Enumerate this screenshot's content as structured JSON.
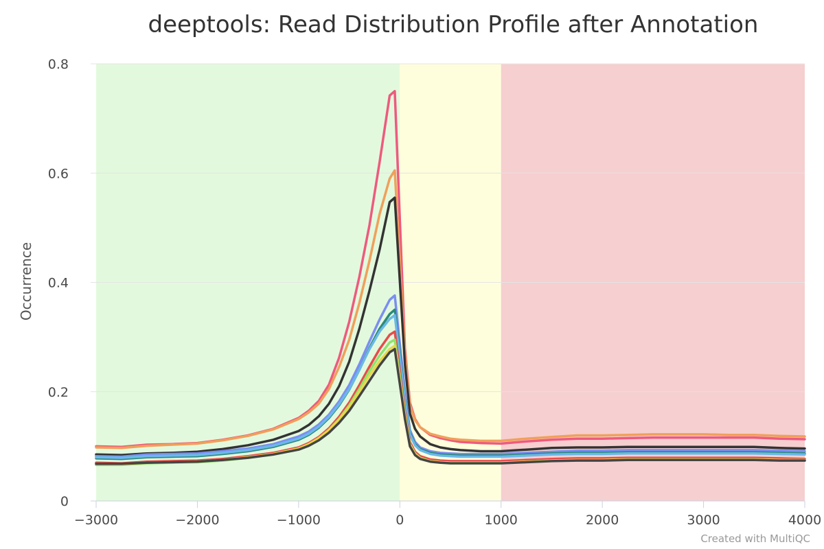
{
  "chart_data": {
    "type": "line",
    "title": "deeptools: Read Distribution Profile after Annotation",
    "ylabel": "Occurrence",
    "xlabel": "",
    "xlim": [
      -3000,
      4000
    ],
    "ylim": [
      0,
      0.8
    ],
    "xticks": [
      -3000,
      -2000,
      -1000,
      0,
      1000,
      2000,
      3000,
      4000
    ],
    "yticks": [
      0,
      0.2,
      0.4,
      0.6,
      0.8
    ],
    "grid": "horizontal",
    "legend": "none",
    "credit": "Created with MultiQC",
    "bands": [
      {
        "from": -3000,
        "to": 0,
        "color": "#e3f9dd"
      },
      {
        "from": 0,
        "to": 1000,
        "color": "#fefedc"
      },
      {
        "from": 1000,
        "to": 4000,
        "color": "#f6cfd0"
      }
    ],
    "x": [
      -3000,
      -2750,
      -2500,
      -2250,
      -2000,
      -1750,
      -1500,
      -1250,
      -1000,
      -900,
      -800,
      -700,
      -600,
      -500,
      -400,
      -300,
      -200,
      -100,
      -50,
      50,
      100,
      150,
      200,
      300,
      400,
      500,
      600,
      800,
      1000,
      1250,
      1500,
      1750,
      2000,
      2250,
      2500,
      2750,
      3000,
      3250,
      3500,
      3750,
      4000
    ],
    "series": [
      {
        "color": "#ee5a7e",
        "values": [
          0.1,
          0.099,
          0.103,
          0.104,
          0.106,
          0.112,
          0.12,
          0.132,
          0.152,
          0.165,
          0.183,
          0.213,
          0.262,
          0.328,
          0.41,
          0.505,
          0.62,
          0.742,
          0.75,
          0.28,
          0.18,
          0.15,
          0.135,
          0.121,
          0.115,
          0.111,
          0.108,
          0.106,
          0.105,
          0.109,
          0.112,
          0.114,
          0.114,
          0.115,
          0.116,
          0.116,
          0.116,
          0.116,
          0.116,
          0.114,
          0.113
        ]
      },
      {
        "color": "#f0a05a",
        "values": [
          0.098,
          0.097,
          0.101,
          0.103,
          0.105,
          0.111,
          0.119,
          0.131,
          0.15,
          0.162,
          0.178,
          0.205,
          0.245,
          0.295,
          0.362,
          0.44,
          0.525,
          0.59,
          0.605,
          0.27,
          0.175,
          0.148,
          0.135,
          0.123,
          0.118,
          0.114,
          0.112,
          0.11,
          0.11,
          0.114,
          0.117,
          0.12,
          0.12,
          0.121,
          0.122,
          0.122,
          0.122,
          0.121,
          0.121,
          0.119,
          0.118
        ]
      },
      {
        "color": "#333333",
        "values": [
          0.085,
          0.084,
          0.087,
          0.088,
          0.09,
          0.095,
          0.102,
          0.112,
          0.128,
          0.139,
          0.155,
          0.178,
          0.21,
          0.255,
          0.315,
          0.385,
          0.46,
          0.547,
          0.555,
          0.25,
          0.16,
          0.132,
          0.118,
          0.104,
          0.098,
          0.095,
          0.093,
          0.091,
          0.091,
          0.094,
          0.097,
          0.098,
          0.098,
          0.099,
          0.099,
          0.099,
          0.099,
          0.099,
          0.099,
          0.097,
          0.096
        ]
      },
      {
        "color": "#7b8ef0",
        "values": [
          0.082,
          0.081,
          0.085,
          0.086,
          0.087,
          0.091,
          0.096,
          0.104,
          0.118,
          0.127,
          0.14,
          0.158,
          0.182,
          0.212,
          0.25,
          0.292,
          0.332,
          0.368,
          0.376,
          0.2,
          0.13,
          0.108,
          0.098,
          0.091,
          0.088,
          0.087,
          0.086,
          0.086,
          0.086,
          0.088,
          0.09,
          0.092,
          0.092,
          0.093,
          0.093,
          0.093,
          0.093,
          0.093,
          0.093,
          0.092,
          0.091
        ]
      },
      {
        "color": "#2a8a7a",
        "values": [
          0.078,
          0.077,
          0.08,
          0.081,
          0.082,
          0.086,
          0.091,
          0.099,
          0.112,
          0.121,
          0.134,
          0.152,
          0.175,
          0.204,
          0.24,
          0.28,
          0.315,
          0.342,
          0.35,
          0.19,
          0.125,
          0.104,
          0.095,
          0.088,
          0.085,
          0.084,
          0.083,
          0.083,
          0.083,
          0.085,
          0.087,
          0.088,
          0.088,
          0.089,
          0.089,
          0.089,
          0.089,
          0.089,
          0.089,
          0.088,
          0.087
        ]
      },
      {
        "color": "#6bb8e8",
        "values": [
          0.08,
          0.079,
          0.082,
          0.083,
          0.084,
          0.088,
          0.093,
          0.101,
          0.114,
          0.123,
          0.136,
          0.154,
          0.177,
          0.205,
          0.24,
          0.278,
          0.31,
          0.333,
          0.34,
          0.185,
          0.122,
          0.102,
          0.093,
          0.086,
          0.083,
          0.082,
          0.081,
          0.081,
          0.081,
          0.083,
          0.085,
          0.086,
          0.086,
          0.087,
          0.087,
          0.087,
          0.087,
          0.087,
          0.087,
          0.086,
          0.085
        ]
      },
      {
        "color": "#e84b4b",
        "values": [
          0.07,
          0.069,
          0.072,
          0.073,
          0.074,
          0.077,
          0.082,
          0.088,
          0.098,
          0.106,
          0.117,
          0.133,
          0.154,
          0.18,
          0.212,
          0.246,
          0.278,
          0.304,
          0.31,
          0.165,
          0.108,
          0.09,
          0.082,
          0.076,
          0.074,
          0.073,
          0.073,
          0.073,
          0.073,
          0.075,
          0.077,
          0.078,
          0.078,
          0.079,
          0.079,
          0.079,
          0.079,
          0.079,
          0.079,
          0.078,
          0.077
        ]
      },
      {
        "color": "#8fe36a",
        "values": [
          0.066,
          0.066,
          0.069,
          0.07,
          0.071,
          0.074,
          0.079,
          0.085,
          0.095,
          0.103,
          0.114,
          0.13,
          0.15,
          0.175,
          0.205,
          0.238,
          0.266,
          0.29,
          0.295,
          0.158,
          0.104,
          0.087,
          0.079,
          0.073,
          0.071,
          0.07,
          0.07,
          0.07,
          0.07,
          0.072,
          0.074,
          0.075,
          0.075,
          0.076,
          0.076,
          0.076,
          0.076,
          0.076,
          0.076,
          0.075,
          0.075
        ]
      },
      {
        "color": "#e6d84a",
        "values": [
          0.068,
          0.067,
          0.07,
          0.071,
          0.072,
          0.075,
          0.08,
          0.086,
          0.096,
          0.104,
          0.115,
          0.13,
          0.149,
          0.172,
          0.2,
          0.23,
          0.256,
          0.278,
          0.284,
          0.155,
          0.103,
          0.086,
          0.078,
          0.073,
          0.071,
          0.07,
          0.07,
          0.07,
          0.07,
          0.072,
          0.074,
          0.075,
          0.075,
          0.076,
          0.076,
          0.076,
          0.076,
          0.076,
          0.076,
          0.075,
          0.074
        ]
      },
      {
        "color": "#444444",
        "values": [
          0.068,
          0.068,
          0.07,
          0.071,
          0.072,
          0.075,
          0.079,
          0.085,
          0.094,
          0.101,
          0.111,
          0.125,
          0.143,
          0.165,
          0.192,
          0.22,
          0.248,
          0.272,
          0.278,
          0.15,
          0.1,
          0.084,
          0.077,
          0.072,
          0.07,
          0.069,
          0.069,
          0.069,
          0.069,
          0.071,
          0.073,
          0.074,
          0.074,
          0.075,
          0.075,
          0.075,
          0.075,
          0.075,
          0.075,
          0.074,
          0.074
        ]
      }
    ]
  }
}
